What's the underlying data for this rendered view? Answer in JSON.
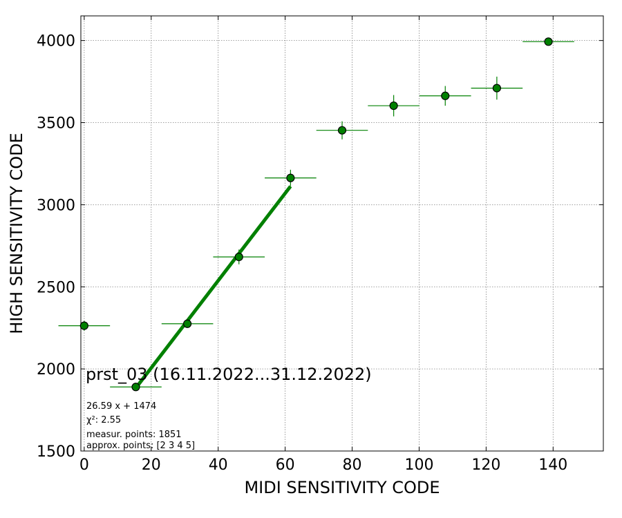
{
  "chart_data": {
    "type": "scatter",
    "title": "prst_03 (16.11.2022...31.12.2022)",
    "xlabel": "MIDI SENSITIVITY CODE",
    "ylabel": "HIGH SENSITIVITY CODE",
    "xlim": [
      -1,
      155
    ],
    "ylim": [
      1500,
      4150
    ],
    "xticks": [
      0,
      20,
      40,
      60,
      80,
      100,
      120,
      140
    ],
    "yticks": [
      1500,
      2000,
      2500,
      3000,
      3500,
      4000
    ],
    "grid": true,
    "colors": {
      "marker": "#008000",
      "errorbar": "#008000",
      "fit": "#008000",
      "grid": "#808080"
    },
    "points": [
      {
        "x": 0.0,
        "y": 2263,
        "xerr": 7.7,
        "yerr": 30
      },
      {
        "x": 15.4,
        "y": 1890,
        "xerr": 7.7,
        "yerr": 20
      },
      {
        "x": 30.8,
        "y": 2275,
        "xerr": 7.7,
        "yerr": 25
      },
      {
        "x": 46.2,
        "y": 2682,
        "xerr": 7.7,
        "yerr": 45
      },
      {
        "x": 61.6,
        "y": 3163,
        "xerr": 7.7,
        "yerr": 50
      },
      {
        "x": 77.0,
        "y": 3453,
        "xerr": 7.7,
        "yerr": 55
      },
      {
        "x": 92.4,
        "y": 3603,
        "xerr": 7.7,
        "yerr": 65
      },
      {
        "x": 107.8,
        "y": 3663,
        "xerr": 7.7,
        "yerr": 60
      },
      {
        "x": 123.2,
        "y": 3710,
        "xerr": 7.7,
        "yerr": 70
      },
      {
        "x": 138.6,
        "y": 3993,
        "xerr": 7.7,
        "yerr": 15
      }
    ],
    "fit": {
      "slope": 26.59,
      "intercept": 1474,
      "x_range": [
        15.4,
        61.6
      ]
    },
    "annotations": [
      "26.59 x + 1474",
      "χ²: 2.55",
      "measur. points: 1851",
      "approx. points: [2 3 4 5]"
    ]
  }
}
